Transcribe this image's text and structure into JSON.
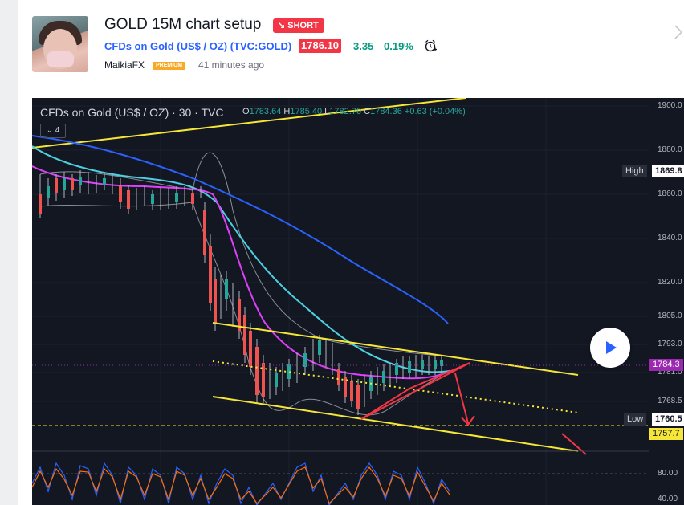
{
  "header": {
    "title": "GOLD 15M chart setup",
    "direction_badge": "SHORT",
    "symbol_link": "CFDs on Gold (US$ / OZ) (TVC:GOLD)",
    "price": "1786.10",
    "change": "3.35",
    "change_pct": "0.19%",
    "author": "MaikiaFX",
    "author_badge": "PREMIUM",
    "time_ago": "41 minutes ago"
  },
  "chart": {
    "legend_symbol": "CFDs on Gold (US$ / OZ) · 30 · TVC",
    "ohlc": {
      "o_label": "O",
      "o": "1783.64",
      "h_label": "H",
      "h": "1785.40",
      "l_label": "L",
      "l": "1782.70",
      "c_label": "C",
      "c": "1784.36",
      "chg": "+0.63 (+0.04%)"
    },
    "indicator_count": "4",
    "axis_ticks": [
      "1900.0",
      "1880.0",
      "1860.0",
      "1840.0",
      "1820.0",
      "1805.0",
      "1793.0",
      "1781.0",
      "1768.5",
      "80.00",
      "40.00"
    ],
    "high_label": "High",
    "high_value": "1869.8",
    "low_label": "Low",
    "low_value": "1760.5",
    "current_price_tag": "1784.3",
    "level_tag": "1757.7",
    "colors": {
      "background": "#131722",
      "trendline": "#f5e637",
      "ema_fast": "#e040fb",
      "ema_mid": "#4dd0e1",
      "ema_slow": "#2962ff",
      "annotation": "#f23645",
      "up_candle": "#26a69a",
      "down_candle": "#ef5350"
    }
  },
  "icons": {
    "short": "arrow-down-right-icon",
    "alarm": "alarm-clock-icon",
    "play": "play-icon",
    "next": "chevron-right-icon"
  }
}
